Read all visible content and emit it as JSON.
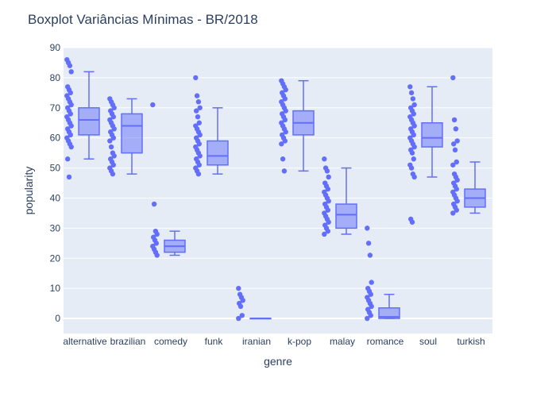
{
  "chart_data": {
    "type": "box",
    "title": "Boxplot Variâncias Mínimas - BR/2018",
    "xlabel": "genre",
    "ylabel": "popularity",
    "ylim": [
      -5,
      90
    ],
    "yticks": [
      0,
      10,
      20,
      30,
      40,
      50,
      60,
      70,
      80,
      90
    ],
    "categories": [
      "alternative",
      "brazilian",
      "comedy",
      "funk",
      "iranian",
      "k-pop",
      "malay",
      "romance",
      "soul",
      "turkish"
    ],
    "boxes": [
      {
        "genre": "alternative",
        "min": 53,
        "q1": 61,
        "median": 66,
        "q3": 70,
        "max": 82,
        "points": [
          86,
          85,
          84,
          82,
          77,
          76,
          75,
          74,
          73,
          72,
          71,
          70,
          69,
          68,
          67,
          66,
          65,
          64,
          63,
          62,
          61,
          60,
          59,
          58,
          57,
          53,
          47
        ]
      },
      {
        "genre": "brazilian",
        "min": 48,
        "q1": 55,
        "median": 64,
        "q3": 68,
        "max": 73,
        "points": [
          73,
          72,
          71,
          70,
          69,
          68,
          67,
          66,
          65,
          64,
          63,
          62,
          61,
          60,
          59,
          57,
          55,
          54,
          53,
          52,
          51,
          50,
          49,
          48
        ]
      },
      {
        "genre": "comedy",
        "min": 21,
        "q1": 22,
        "median": 24,
        "q3": 26,
        "max": 29,
        "points": [
          71,
          38,
          29,
          28,
          27,
          26,
          25,
          24,
          23,
          22,
          21
        ]
      },
      {
        "genre": "funk",
        "min": 48,
        "q1": 51,
        "median": 54,
        "q3": 59,
        "max": 70,
        "points": [
          80,
          74,
          72,
          70,
          69,
          67,
          65,
          64,
          63,
          62,
          61,
          60,
          59,
          58,
          57,
          56,
          55,
          54,
          53,
          52,
          51,
          50,
          49,
          48
        ]
      },
      {
        "genre": "iranian",
        "min": 0,
        "q1": 0,
        "median": 0,
        "q3": 0,
        "max": 0,
        "points": [
          10,
          8,
          7,
          6,
          5,
          4,
          1,
          0
        ]
      },
      {
        "genre": "k-pop",
        "min": 49,
        "q1": 61,
        "median": 65,
        "q3": 69,
        "max": 79,
        "points": [
          79,
          78,
          77,
          76,
          75,
          74,
          73,
          72,
          71,
          70,
          69,
          68,
          67,
          66,
          65,
          64,
          63,
          62,
          61,
          60,
          59,
          58,
          53,
          49
        ]
      },
      {
        "genre": "malay",
        "min": 28,
        "q1": 30,
        "median": 34.5,
        "q3": 38,
        "max": 50,
        "points": [
          53,
          50,
          49,
          47,
          45,
          44,
          43,
          42,
          41,
          40,
          39,
          38,
          37,
          36,
          35,
          34,
          33,
          32,
          31,
          30,
          29,
          28
        ]
      },
      {
        "genre": "romance",
        "min": 0,
        "q1": 0,
        "median": 0.5,
        "q3": 3.5,
        "max": 8,
        "points": [
          30,
          25,
          21,
          12,
          10,
          9,
          8,
          7,
          6,
          5,
          4,
          3,
          2,
          1,
          0
        ]
      },
      {
        "genre": "soul",
        "min": 47,
        "q1": 57,
        "median": 60,
        "q3": 65,
        "max": 77,
        "points": [
          77,
          75,
          73,
          71,
          70,
          69,
          68,
          67,
          66,
          65,
          64,
          63,
          62,
          61,
          60,
          59,
          58,
          57,
          56,
          55,
          53,
          51,
          50,
          48,
          47,
          33,
          32
        ]
      },
      {
        "genre": "turkish",
        "min": 35,
        "q1": 37,
        "median": 40,
        "q3": 43,
        "max": 52,
        "points": [
          80,
          66,
          63,
          59,
          58,
          56,
          52,
          51,
          48,
          47,
          46,
          45,
          44,
          43,
          42,
          41,
          40,
          39,
          38,
          37,
          36,
          35
        ]
      }
    ],
    "colors": {
      "box_line": "#636efa",
      "box_fill": "rgba(99,110,250,0.5)",
      "points": "#636efa",
      "plot_bg": "#e5ecf6",
      "grid": "#ffffff"
    },
    "grid": true
  }
}
